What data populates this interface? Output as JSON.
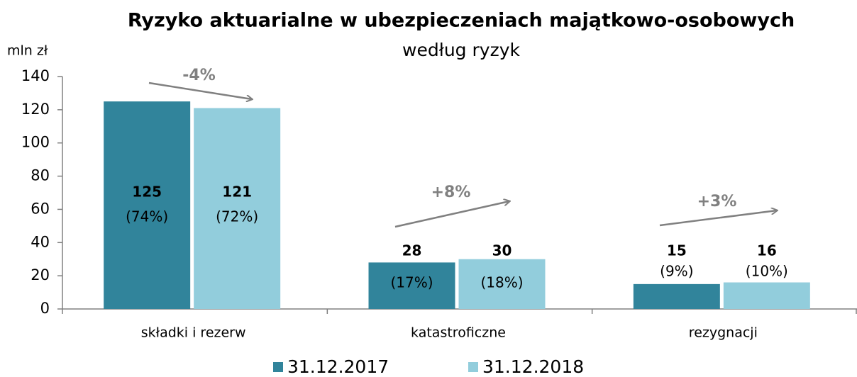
{
  "chart_data": {
    "type": "bar",
    "title": "Ryzyko aktuarialne w ubezpieczeniach majątkowo-osobowych",
    "subtitle": "według ryzyk",
    "y_axis_label": "mln zł",
    "categories": [
      "składki i rezerw",
      "katastroficzne",
      "rezygnacji"
    ],
    "series": [
      {
        "name": "31.12.2017",
        "color": "#31849b",
        "values": [
          125,
          28,
          15
        ],
        "share_labels": [
          "(74%)",
          "(17%)",
          "(9%)"
        ]
      },
      {
        "name": "31.12.2018",
        "color": "#92cddc",
        "values": [
          121,
          30,
          16
        ],
        "share_labels": [
          "(72%)",
          "(18%)",
          "(10%)"
        ]
      }
    ],
    "annotations": [
      "-4%",
      "+8%",
      "+3%"
    ],
    "ylim": [
      0,
      140
    ],
    "yticks": [
      0,
      20,
      40,
      60,
      80,
      100,
      120,
      140
    ],
    "legend": "bottom"
  }
}
